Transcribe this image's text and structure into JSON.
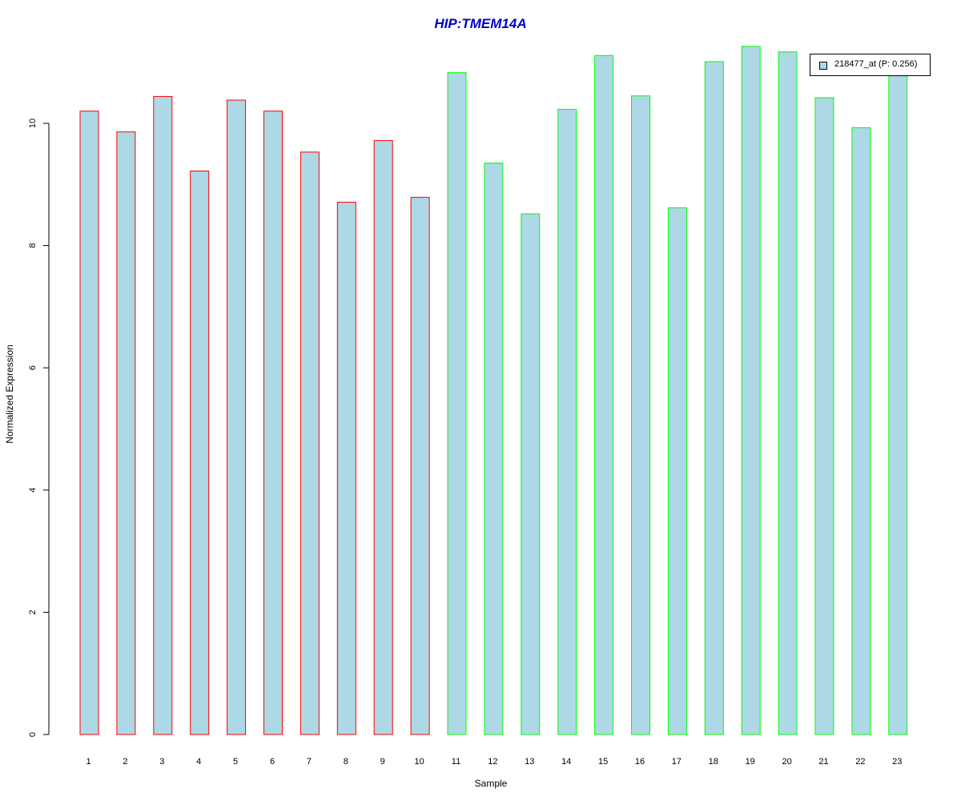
{
  "chart_data": {
    "type": "bar",
    "title": "HIP:TMEM14A",
    "xlabel": "Sample",
    "ylabel": "Normalized Expression",
    "categories": [
      "1",
      "2",
      "3",
      "4",
      "5",
      "6",
      "7",
      "8",
      "9",
      "10",
      "11",
      "12",
      "13",
      "14",
      "15",
      "16",
      "17",
      "18",
      "19",
      "20",
      "21",
      "22",
      "23"
    ],
    "series": [
      {
        "name": "218477_at (P: 0.256)",
        "values": [
          10.2,
          9.86,
          10.44,
          9.22,
          10.38,
          10.2,
          9.53,
          8.71,
          9.72,
          8.79,
          10.83,
          9.35,
          8.52,
          10.23,
          11.11,
          10.45,
          8.62,
          11.01,
          11.26,
          11.17,
          10.42,
          9.93,
          10.86
        ]
      }
    ],
    "groups": [
      {
        "samples": [
          1,
          10
        ],
        "border_color": "#FF0000"
      },
      {
        "samples": [
          11,
          23
        ],
        "border_color": "#00FF00"
      }
    ],
    "bar_fill": "#ADD8E6",
    "title_color": "#0000CD",
    "yticks": [
      0,
      2,
      4,
      6,
      8,
      10
    ],
    "ylim": [
      0,
      11.3
    ],
    "grid": false,
    "legend_position": "top-right"
  }
}
